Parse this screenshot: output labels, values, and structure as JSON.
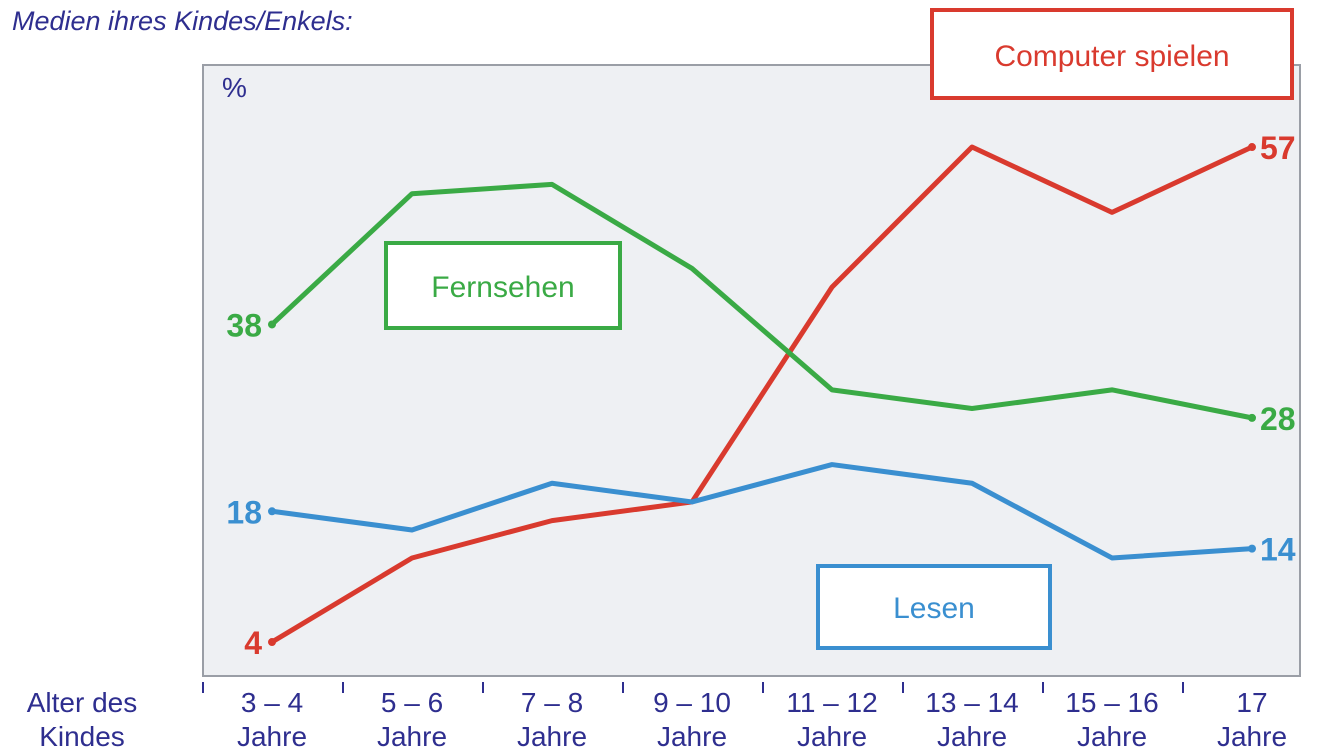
{
  "chart_data": {
    "type": "line",
    "title": "Medien ihres Kindes/Enkels:",
    "y_label": "%",
    "x_label": "Alter des\nKindes",
    "categories": [
      "3 – 4\nJahre",
      "5 – 6\nJahre",
      "7 – 8\nJahre",
      "9 – 10\nJahre",
      "11 – 12\nJahre",
      "13 – 14\nJahre",
      "15 – 16\nJahre",
      "17\nJahre"
    ],
    "ylim": [
      0,
      66
    ],
    "series": [
      {
        "name": "Computer spielen",
        "color": "#d93a2e",
        "values": [
          4,
          13,
          17,
          19,
          42,
          57,
          50,
          57
        ]
      },
      {
        "name": "Fernsehen",
        "color": "#3aaa45",
        "values": [
          38,
          52,
          53,
          44,
          31,
          29,
          31,
          28
        ]
      },
      {
        "name": "Lesen",
        "color": "#3a8fd0",
        "values": [
          18,
          16,
          21,
          19,
          23,
          21,
          13,
          14
        ]
      }
    ]
  }
}
